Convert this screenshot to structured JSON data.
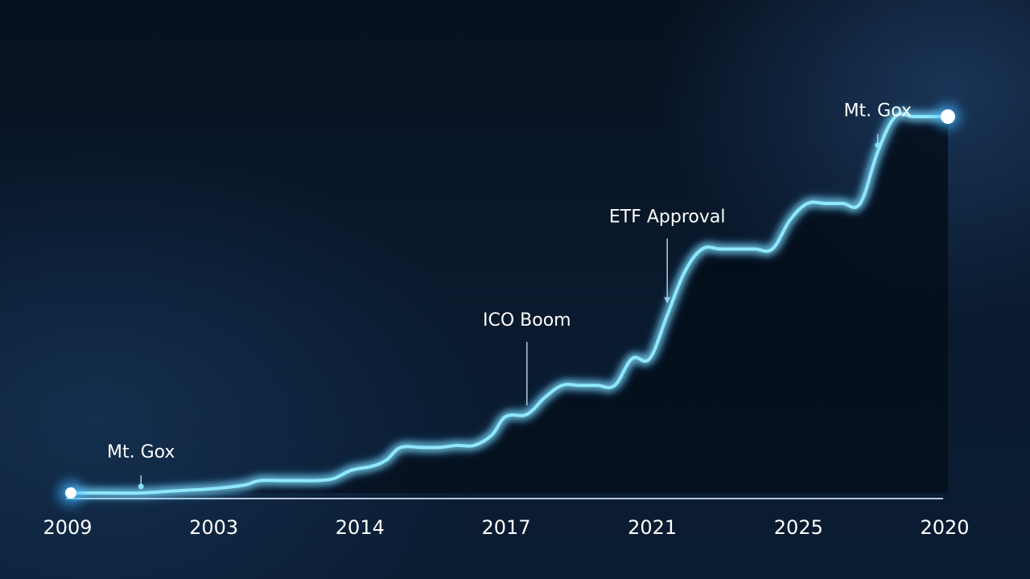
{
  "chart_data": {
    "type": "line",
    "title": "",
    "xlabel": "",
    "ylabel": "",
    "grid": false,
    "x_tick_labels": [
      "2009",
      "2003",
      "2014",
      "2017",
      "2021",
      "2025",
      "2020"
    ],
    "x": [
      0,
      0.4,
      1,
      2,
      3,
      4,
      4.6,
      5,
      5.4,
      6,
      6.5,
      7,
      7.5,
      8,
      8.6,
      9,
      9.4,
      10,
      10.5,
      11,
      11.5,
      12,
      12.4,
      13,
      13.5,
      14,
      14.5,
      15,
      15.5,
      16,
      16.5,
      17,
      17.5,
      18,
      18.5,
      19,
      19.5,
      20,
      20.5,
      21,
      21.5,
      22,
      22.5,
      23,
      23.5,
      24,
      24.5,
      25
    ],
    "series": [
      {
        "values": [
          0.0,
          0.0,
          0.0,
          0.0,
          0.1,
          0.2,
          0.3,
          0.4,
          0.6,
          0.6,
          0.6,
          0.6,
          0.7,
          1.1,
          1.3,
          1.6,
          2.2,
          2.2,
          2.2,
          2.3,
          2.3,
          2.8,
          3.7,
          3.8,
          4.6,
          5.2,
          5.2,
          5.2,
          5.2,
          6.5,
          6.5,
          8.6,
          10.7,
          11.8,
          11.8,
          11.8,
          11.8,
          11.8,
          13.2,
          14.0,
          14.0,
          14.0,
          14.0,
          16.5,
          18.2,
          18.2,
          18.2,
          18.2
        ]
      }
    ],
    "annotations": [
      {
        "text": "Mt. Gox",
        "marker": "dot",
        "x": 2.0,
        "y": 0.0
      },
      {
        "text": "ICO Boom",
        "marker": "line",
        "x": 13.0,
        "y": 4.0
      },
      {
        "text": "ETF Approval",
        "marker": "arrow",
        "x": 17.0,
        "y": 9.0
      },
      {
        "text": "Mt. Gox",
        "marker": "dot",
        "x": 23.0,
        "y": 16.5
      }
    ],
    "colors": {
      "line": "#8fe8ff",
      "glow": "#3fb6ff",
      "axis": "#b9c8d8",
      "text": "#ffffff"
    }
  }
}
